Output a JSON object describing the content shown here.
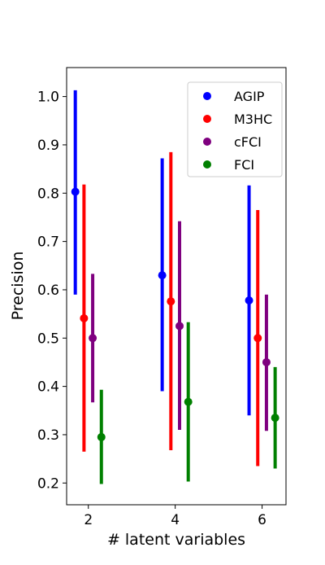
{
  "chart_data": {
    "type": "scatter",
    "xlabel": "# latent variables",
    "ylabel": "Precision",
    "x_ticks": [
      2,
      4,
      6
    ],
    "y_ticks": [
      "0.2",
      "0.3",
      "0.4",
      "0.5",
      "0.6",
      "0.7",
      "0.8",
      "0.9",
      "1.0"
    ],
    "xlim": [
      1.5,
      6.55
    ],
    "ylim": [
      0.155,
      1.06
    ],
    "grid": false,
    "legend_position": "top-right",
    "series": [
      {
        "name": "AGIP",
        "color": "#0000ff",
        "x": [
          1.7,
          3.7,
          5.7
        ],
        "y": [
          0.803,
          0.63,
          0.578
        ],
        "err_low": [
          0.59,
          0.39,
          0.34
        ],
        "err_high": [
          1.013,
          0.872,
          0.816
        ]
      },
      {
        "name": "M3HC",
        "color": "#ff0000",
        "x": [
          1.9,
          3.9,
          5.9
        ],
        "y": [
          0.541,
          0.576,
          0.5
        ],
        "err_low": [
          0.265,
          0.268,
          0.235
        ],
        "err_high": [
          0.818,
          0.885,
          0.765
        ]
      },
      {
        "name": "cFCI",
        "color": "#7f007f",
        "x": [
          2.1,
          4.1,
          6.1
        ],
        "y": [
          0.5,
          0.525,
          0.45
        ],
        "err_low": [
          0.367,
          0.31,
          0.308
        ],
        "err_high": [
          0.633,
          0.742,
          0.59
        ]
      },
      {
        "name": "FCI",
        "color": "#008000",
        "x": [
          2.3,
          4.3,
          6.3
        ],
        "y": [
          0.295,
          0.368,
          0.335
        ],
        "err_low": [
          0.198,
          0.203,
          0.23
        ],
        "err_high": [
          0.393,
          0.533,
          0.44
        ]
      }
    ]
  }
}
